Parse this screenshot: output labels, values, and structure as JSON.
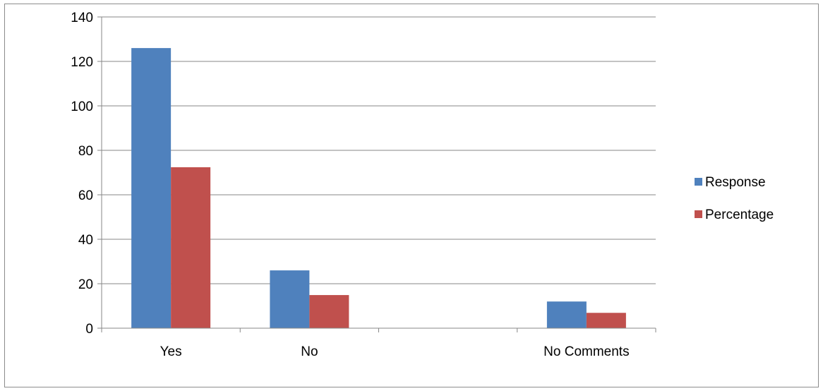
{
  "chart_data": {
    "type": "bar",
    "title": "",
    "xlabel": "",
    "ylabel": "",
    "categories": [
      "Yes",
      "No",
      "",
      "No Comments"
    ],
    "series": [
      {
        "name": "Response",
        "values": [
          126,
          26,
          null,
          12
        ]
      },
      {
        "name": "Percentage",
        "values": [
          72.4,
          14.9,
          null,
          6.9
        ]
      }
    ],
    "ylim": [
      0,
      140
    ],
    "yticks": [
      0,
      20,
      40,
      60,
      80,
      100,
      120,
      140
    ],
    "grid": true,
    "legend_position": "right",
    "colors": {
      "Response": "#4f81bd",
      "Percentage": "#c0504d",
      "gridline": "#878787",
      "axis": "#878787"
    }
  }
}
